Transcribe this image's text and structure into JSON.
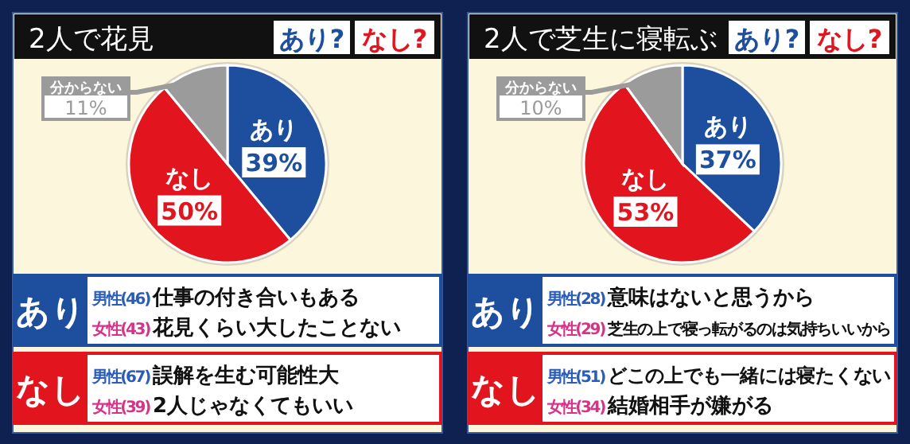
{
  "chart_data": [
    {
      "type": "pie",
      "title": "2人で花見",
      "categories": [
        "あり",
        "なし",
        "分からない"
      ],
      "values": [
        39,
        50,
        11
      ],
      "value_labels": [
        "39%",
        "50%",
        "11%"
      ],
      "colors": [
        "#1d4f9e",
        "#e2141e",
        "#9b9b9b"
      ],
      "annotations": [
        "あり?",
        "なし?",
        "あり",
        "男性(46)",
        "仕事の付き合いもある",
        "女性(43)",
        "花見くらい大したことない",
        "なし",
        "男性(67)",
        "誤解を生む可能性大",
        "女性(39)",
        "2人じゃなくてもいい"
      ]
    },
    {
      "type": "pie",
      "title": "2人で芝生に寝転ぶ",
      "categories": [
        "あり",
        "なし",
        "分からない"
      ],
      "values": [
        37,
        53,
        10
      ],
      "value_labels": [
        "37%",
        "53%",
        "10%"
      ],
      "colors": [
        "#1d4f9e",
        "#e2141e",
        "#9b9b9b"
      ],
      "annotations": [
        "あり?",
        "なし?",
        "あり",
        "男性(28)",
        "意味はないと思うから",
        "女性(29)",
        "芝生の上で寝っ転がるのは気持ちいいから",
        "なし",
        "男性(51)",
        "どこの上でも一緒には寝たくない",
        "女性(34)",
        "結婚相手が嫌がる"
      ]
    }
  ]
}
